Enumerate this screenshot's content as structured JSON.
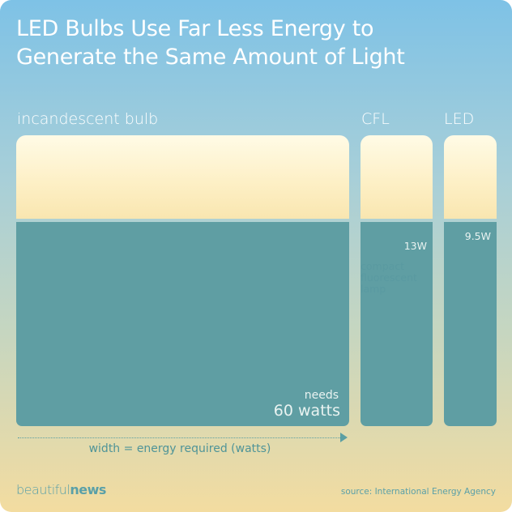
{
  "title_line1": "LED Bulbs Use Far Less Energy to",
  "title_line2": "Generate the Same Amount of Light",
  "chart_data": {
    "type": "bar",
    "title": "LED Bulbs Use Far Less Energy to Generate the Same Amount of Light",
    "categories": [
      "incandescent bulb",
      "CFL",
      "LED"
    ],
    "values": [
      60,
      13,
      9.5
    ],
    "unit": "W",
    "value_labels": [
      "needs",
      "13W",
      "9.5W"
    ],
    "value_label_main": "60 watts",
    "cfl_note": "compact\nfluorescent\nlamp",
    "xlabel": "width = energy required (watts)",
    "colors": {
      "energy": "#5f9ea3",
      "glow_top": "#fffbe6",
      "glow_bottom": "#f9e6b0",
      "label_text": "#ffffff"
    }
  },
  "brand_part1": "beautiful",
  "brand_part2": "news",
  "source": "source: International Energy Agency"
}
